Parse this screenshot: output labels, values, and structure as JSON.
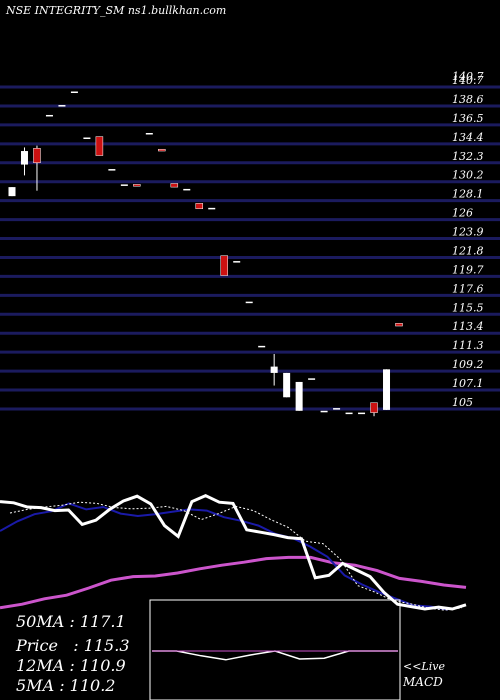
{
  "header": {
    "title": "NSE INTEGRITY_SM",
    "source": "ns1.bullkhan.com"
  },
  "colors": {
    "background": "#000000",
    "gridline": "#1b1b5e",
    "bull_candle": "#ffffff",
    "bear_candle": "#cc1111",
    "price_line": "#ffffff",
    "ma_blue": "#1a1aa8",
    "ma_magenta": "#cc55cc",
    "ma_dotted": "#ffffff",
    "macd_line": "#ffffff",
    "macd_signal": "#cc55cc",
    "macd_box": "#ffffff"
  },
  "legend": {
    "ma50": "50MA : 117.1",
    "price": "Price   : 115.3",
    "ma12": "12MA : 110.9",
    "ma5": "5MA : 110.2"
  },
  "footer": {
    "live": "<<Live",
    "macd": "MACD"
  },
  "chart_data": {
    "type": "candlestick",
    "y_ticks": [
      "140.7",
      "140.7",
      "138.6",
      "136.5",
      "134.4",
      "132.3",
      "130.2",
      "128.1",
      "126",
      "123.9",
      "121.8",
      "119.7",
      "117.6",
      "115.5",
      "113.4",
      "111.3",
      "109.2",
      "107.1",
      "105"
    ],
    "y_tick_values": [
      140.7,
      140.7,
      138.6,
      136.5,
      134.4,
      132.3,
      130.2,
      128.1,
      126,
      123.9,
      121.8,
      119.7,
      117.6,
      115.5,
      113.4,
      111.3,
      109.2,
      107.1,
      105
    ],
    "ylim": [
      104.6,
      141.1
    ],
    "candles": [
      {
        "open": 128.6,
        "close": 129.6,
        "high": 129.6,
        "low": 128.6
      },
      {
        "open": 132.1,
        "close": 133.6,
        "high": 134.0,
        "low": 130.9
      },
      {
        "open": 133.9,
        "close": 132.3,
        "high": 134.2,
        "low": 129.2
      },
      {
        "open": 137.6,
        "close": 137.6,
        "high": 137.6,
        "low": 137.6
      },
      {
        "open": 138.7,
        "close": 138.7,
        "high": 138.7,
        "low": 138.7
      },
      {
        "open": 140.2,
        "close": 140.2,
        "high": 140.2,
        "low": 140.2
      },
      {
        "open": 135.1,
        "close": 135.1,
        "high": 135.1,
        "low": 135.1
      },
      {
        "open": 135.2,
        "close": 133.1,
        "high": 135.2,
        "low": 133.1
      },
      {
        "open": 131.6,
        "close": 131.6,
        "high": 131.6,
        "low": 131.6
      },
      {
        "open": 129.9,
        "close": 129.9,
        "high": 129.9,
        "low": 129.9
      },
      {
        "open": 129.9,
        "close": 129.7,
        "high": 129.9,
        "low": 129.7
      },
      {
        "open": 135.6,
        "close": 135.6,
        "high": 135.6,
        "low": 135.6
      },
      {
        "open": 133.8,
        "close": 133.6,
        "high": 133.8,
        "low": 133.6
      },
      {
        "open": 130.0,
        "close": 129.6,
        "high": 130.0,
        "low": 129.6
      },
      {
        "open": 129.4,
        "close": 129.4,
        "high": 129.4,
        "low": 129.4
      },
      {
        "open": 127.8,
        "close": 127.2,
        "high": 127.8,
        "low": 127.2
      },
      {
        "open": 127.3,
        "close": 127.3,
        "high": 127.3,
        "low": 127.3
      },
      {
        "open": 122.0,
        "close": 119.8,
        "high": 122.0,
        "low": 119.8
      },
      {
        "open": 121.4,
        "close": 121.4,
        "high": 121.4,
        "low": 121.4
      },
      {
        "open": 116.9,
        "close": 116.9,
        "high": 116.9,
        "low": 116.9
      },
      {
        "open": 112.0,
        "close": 112.0,
        "high": 112.0,
        "low": 112.0
      },
      {
        "open": 109.0,
        "close": 109.7,
        "high": 111.1,
        "low": 107.6
      },
      {
        "open": 106.3,
        "close": 109.0,
        "high": 109.0,
        "low": 106.3
      },
      {
        "open": 104.8,
        "close": 108.0,
        "high": 108.0,
        "low": 104.8
      },
      {
        "open": 108.4,
        "close": 108.4,
        "high": 108.4,
        "low": 108.4
      },
      {
        "open": 104.8,
        "close": 104.8,
        "high": 104.8,
        "low": 104.8
      },
      {
        "open": 105.1,
        "close": 105.1,
        "high": 105.1,
        "low": 105.1
      },
      {
        "open": 104.6,
        "close": 104.6,
        "high": 104.6,
        "low": 104.6
      },
      {
        "open": 104.6,
        "close": 104.6,
        "high": 104.6,
        "low": 104.6
      },
      {
        "open": 105.7,
        "close": 104.6,
        "high": 105.7,
        "low": 104.2
      },
      {
        "open": 104.9,
        "close": 109.4,
        "high": 109.4,
        "low": 104.9
      },
      {
        "open": 114.5,
        "close": 114.2,
        "high": 114.5,
        "low": 114.2
      }
    ],
    "lines": {
      "price": [
        110.9,
        110.7,
        110.0,
        109.9,
        109.4,
        109.5,
        107.1,
        107.8,
        109.6,
        111.0,
        111.8,
        110.5,
        106.9,
        105.1,
        110.9,
        111.9,
        110.8,
        110.6,
        106.2,
        105.8,
        105.4,
        104.9,
        104.7,
        98.2,
        98.6,
        100.6,
        99.5,
        98.4,
        95.8,
        93.8,
        93.4,
        93.0,
        93.3,
        93.0,
        93.7
      ],
      "ma_blue": [
        106.0,
        107.6,
        108.8,
        109.3,
        110.6,
        109.6,
        110.0,
        108.9,
        108.5,
        108.8,
        109.2,
        109.6,
        109.4,
        108.3,
        107.7,
        106.9,
        105.5,
        104.8,
        103.4,
        101.7,
        98.6,
        97.1,
        95.8,
        94.7,
        93.6,
        93.4,
        92.9
      ],
      "ma_magenta": [
        93.2,
        93.8,
        94.7,
        95.3,
        96.5,
        97.8,
        98.4,
        98.5,
        99.0,
        99.7,
        100.3,
        100.8,
        101.4,
        101.6,
        101.6,
        100.7,
        100.3,
        99.4,
        98.1,
        97.6,
        97.0,
        96.6
      ],
      "ma_dotted": [
        109.0,
        109.6,
        110.0,
        110.3,
        110.8,
        110.6,
        109.9,
        109.7,
        109.8,
        110.1,
        109.4,
        107.9,
        108.9,
        110.1,
        109.4,
        107.9,
        106.6,
        104.3,
        103.9,
        101.3,
        96.9,
        95.8,
        94.4,
        93.9,
        93.2,
        92.8,
        93.2
      ],
      "macd": [
        0.0,
        0.0,
        -0.6,
        -1.1,
        -0.5,
        0.0,
        -1.0,
        -0.9,
        0.0,
        0.0,
        0.0
      ],
      "macd_signal": [
        0.0,
        0.0
      ]
    }
  }
}
